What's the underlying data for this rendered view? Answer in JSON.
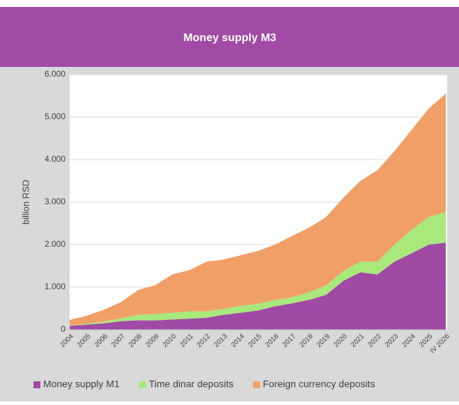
{
  "chart_data": {
    "type": "stacked_area",
    "title": "Money supply M3",
    "y_label": "billion RSD",
    "categories": [
      "2004",
      "2005",
      "2006",
      "2007",
      "2008",
      "2009",
      "2010",
      "2011",
      "2012",
      "2013",
      "2014",
      "2015",
      "2016",
      "2017",
      "2018",
      "2019",
      "2020",
      "2021",
      "2022",
      "2023",
      "2024",
      "2025",
      "IV 2026"
    ],
    "series": [
      {
        "name": "Money supply M1",
        "color": "#a04aa6",
        "values": [
          90,
          120,
          150,
          200,
          220,
          220,
          240,
          260,
          280,
          350,
          400,
          450,
          550,
          620,
          700,
          820,
          1150,
          1350,
          1300,
          1600,
          1800,
          2000,
          2050
        ]
      },
      {
        "name": "Time dinar deposits",
        "color": "#a9e87b",
        "values": [
          10,
          20,
          40,
          70,
          130,
          150,
          160,
          170,
          150,
          140,
          160,
          160,
          150,
          140,
          180,
          220,
          230,
          250,
          300,
          400,
          550,
          650,
          720
        ]
      },
      {
        "name": "Foreign currency deposits",
        "color": "#f0a066",
        "values": [
          130,
          190,
          280,
          380,
          580,
          680,
          900,
          970,
          1170,
          1160,
          1190,
          1240,
          1300,
          1440,
          1520,
          1610,
          1720,
          1900,
          2150,
          2200,
          2350,
          2550,
          2780
        ]
      }
    ],
    "ylim": [
      0,
      6000
    ],
    "yticks": [
      0,
      {
        "value": 1000,
        "label": "1.000"
      },
      {
        "value": 2000,
        "label": "2.000"
      },
      {
        "value": 3000,
        "label": "3.000"
      },
      {
        "value": 4000,
        "label": "4.000"
      },
      {
        "value": 5000,
        "label": "5.000"
      },
      {
        "value": 6000,
        "label": "6.000"
      }
    ],
    "grid": true,
    "legend": "bottom"
  }
}
